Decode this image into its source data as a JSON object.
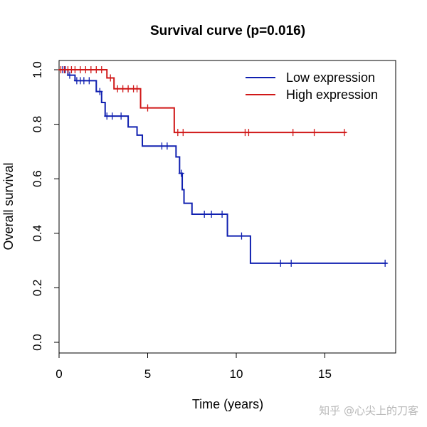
{
  "chart_data": {
    "type": "line",
    "subtype": "kaplan-meier-step",
    "title": "Survival curve (p=0.016)",
    "xlabel": "Time (years)",
    "ylabel": "Overall survival",
    "xlim": [
      0,
      19
    ],
    "ylim": [
      0,
      1
    ],
    "x_ticks": [
      0,
      5,
      10,
      15
    ],
    "y_ticks": [
      0.0,
      0.2,
      0.4,
      0.6,
      0.8,
      1.0
    ],
    "x_tick_labels": [
      "0",
      "5",
      "10",
      "15"
    ],
    "y_tick_labels": [
      "0.0",
      "0.2",
      "0.4",
      "0.6",
      "0.8",
      "1.0"
    ],
    "legend_position": "top-right",
    "series": [
      {
        "name": "Low expression",
        "color": "#1020b0",
        "steps": [
          [
            0,
            1.0
          ],
          [
            0.5,
            0.98
          ],
          [
            0.9,
            0.96
          ],
          [
            2.1,
            0.92
          ],
          [
            2.4,
            0.88
          ],
          [
            2.6,
            0.83
          ],
          [
            3.9,
            0.79
          ],
          [
            4.4,
            0.76
          ],
          [
            4.7,
            0.72
          ],
          [
            6.6,
            0.68
          ],
          [
            6.8,
            0.62
          ],
          [
            6.95,
            0.56
          ],
          [
            7.05,
            0.51
          ],
          [
            7.5,
            0.47
          ],
          [
            9.5,
            0.39
          ],
          [
            10.8,
            0.29
          ],
          [
            18.5,
            0.29
          ]
        ],
        "censored": [
          [
            0.2,
            1.0
          ],
          [
            0.35,
            1.0
          ],
          [
            0.6,
            0.98
          ],
          [
            1.0,
            0.96
          ],
          [
            1.2,
            0.96
          ],
          [
            1.4,
            0.96
          ],
          [
            1.7,
            0.96
          ],
          [
            2.3,
            0.92
          ],
          [
            2.7,
            0.83
          ],
          [
            3.0,
            0.83
          ],
          [
            3.5,
            0.83
          ],
          [
            5.8,
            0.72
          ],
          [
            6.1,
            0.72
          ],
          [
            6.9,
            0.62
          ],
          [
            8.2,
            0.47
          ],
          [
            8.6,
            0.47
          ],
          [
            9.2,
            0.47
          ],
          [
            10.3,
            0.39
          ],
          [
            12.5,
            0.29
          ],
          [
            13.1,
            0.29
          ],
          [
            18.4,
            0.29
          ]
        ]
      },
      {
        "name": "High expression",
        "color": "#d01818",
        "steps": [
          [
            0,
            1.0
          ],
          [
            2.7,
            0.97
          ],
          [
            3.1,
            0.93
          ],
          [
            4.6,
            0.86
          ],
          [
            6.5,
            0.77
          ],
          [
            16.2,
            0.77
          ]
        ],
        "censored": [
          [
            0.1,
            1.0
          ],
          [
            0.3,
            1.0
          ],
          [
            0.5,
            1.0
          ],
          [
            0.7,
            1.0
          ],
          [
            0.9,
            1.0
          ],
          [
            1.2,
            1.0
          ],
          [
            1.5,
            1.0
          ],
          [
            1.8,
            1.0
          ],
          [
            2.1,
            1.0
          ],
          [
            2.4,
            1.0
          ],
          [
            2.9,
            0.97
          ],
          [
            3.3,
            0.93
          ],
          [
            3.6,
            0.93
          ],
          [
            3.9,
            0.93
          ],
          [
            4.2,
            0.93
          ],
          [
            4.4,
            0.93
          ],
          [
            5.0,
            0.86
          ],
          [
            6.7,
            0.77
          ],
          [
            7.0,
            0.77
          ],
          [
            10.5,
            0.77
          ],
          [
            10.7,
            0.77
          ],
          [
            13.2,
            0.77
          ],
          [
            14.4,
            0.77
          ],
          [
            16.1,
            0.77
          ]
        ]
      }
    ]
  },
  "watermark": "知乎 @心尖上的刀客"
}
